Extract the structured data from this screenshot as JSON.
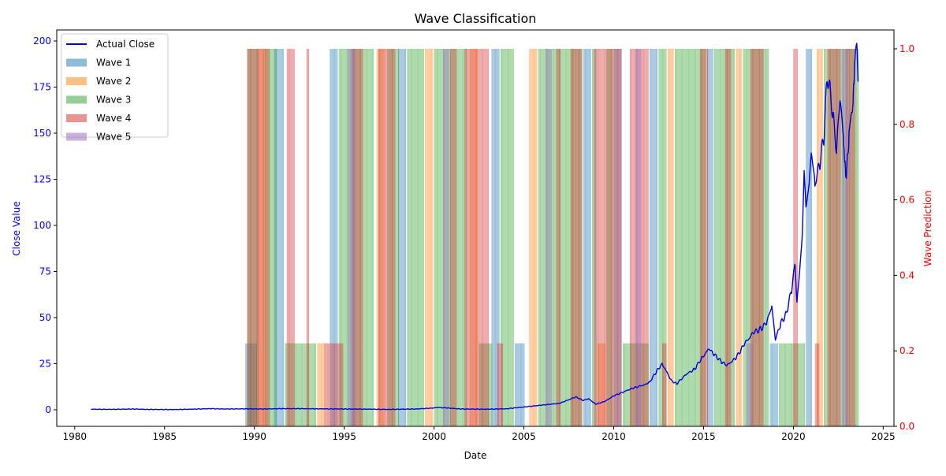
{
  "chart_data": {
    "type": "line",
    "title": "Wave Classification",
    "xlabel": "Date",
    "ylabel_left": "Close Value",
    "ylabel_right": "Wave Prediction",
    "x_range": [
      1979.0,
      2025.6
    ],
    "y_left_range": [
      -9,
      206
    ],
    "y_right_range": [
      0,
      1.05
    ],
    "x_ticks": [
      "1980",
      "1985",
      "1990",
      "1995",
      "2000",
      "2005",
      "2010",
      "2015",
      "2020",
      "2025"
    ],
    "y_left_ticks": [
      "0",
      "25",
      "50",
      "75",
      "100",
      "125",
      "150",
      "175",
      "200"
    ],
    "y_right_ticks": [
      "0.0",
      "0.2",
      "0.4",
      "0.6",
      "0.8",
      "1.0"
    ],
    "legend_position": "top-left",
    "grid": false,
    "colors": {
      "actual_close": "#0000dd",
      "left_axis": "#0000ff",
      "right_axis": "#ff0000",
      "wave1": "#1f77b4",
      "wave2": "#ff7f0e",
      "wave3": "#2ca02c",
      "wave4": "#d62728",
      "wave5": "#9467bd"
    },
    "series": [
      {
        "name": "Actual Close",
        "points": [
          [
            1980.9,
            0.3
          ],
          [
            1982.0,
            0.2
          ],
          [
            1983.3,
            0.4
          ],
          [
            1984.0,
            0.2
          ],
          [
            1985.5,
            0.1
          ],
          [
            1986.5,
            0.3
          ],
          [
            1987.6,
            0.6
          ],
          [
            1988.3,
            0.4
          ],
          [
            1989.5,
            0.5
          ],
          [
            1990.5,
            0.4
          ],
          [
            1991.5,
            0.6
          ],
          [
            1992.5,
            0.6
          ],
          [
            1993.5,
            0.5
          ],
          [
            1995.0,
            0.4
          ],
          [
            1996.5,
            0.3
          ],
          [
            1997.5,
            0.2
          ],
          [
            1999.0,
            0.4
          ],
          [
            1999.9,
            0.9
          ],
          [
            2000.2,
            1.2
          ],
          [
            2000.7,
            1.0
          ],
          [
            2001.5,
            0.4
          ],
          [
            2003.0,
            0.3
          ],
          [
            2004.0,
            0.5
          ],
          [
            2005.0,
            1.5
          ],
          [
            2006.0,
            2.5
          ],
          [
            2007.0,
            3.5
          ],
          [
            2007.9,
            7.0
          ],
          [
            2008.3,
            5.0
          ],
          [
            2008.6,
            6.0
          ],
          [
            2009.0,
            3.0
          ],
          [
            2009.5,
            4.5
          ],
          [
            2010.0,
            7.5
          ],
          [
            2011.0,
            11.5
          ],
          [
            2011.7,
            13.5
          ],
          [
            2012.0,
            15.0
          ],
          [
            2012.4,
            21.0
          ],
          [
            2012.7,
            25.0
          ],
          [
            2013.2,
            16.0
          ],
          [
            2013.5,
            14.0
          ],
          [
            2014.0,
            19.0
          ],
          [
            2014.5,
            22.0
          ],
          [
            2014.9,
            28.0
          ],
          [
            2015.3,
            33.0
          ],
          [
            2015.6,
            30.0
          ],
          [
            2016.0,
            26.0
          ],
          [
            2016.3,
            24.0
          ],
          [
            2016.8,
            28.0
          ],
          [
            2017.3,
            36.0
          ],
          [
            2017.8,
            42.0
          ],
          [
            2018.2,
            44.0
          ],
          [
            2018.5,
            47.0
          ],
          [
            2018.8,
            56.0
          ],
          [
            2019.0,
            38.0
          ],
          [
            2019.3,
            47.0
          ],
          [
            2019.6,
            52.0
          ],
          [
            2019.9,
            65.0
          ],
          [
            2020.1,
            80.0
          ],
          [
            2020.2,
            57.0
          ],
          [
            2020.5,
            95.0
          ],
          [
            2020.6,
            130.0
          ],
          [
            2020.7,
            110.0
          ],
          [
            2020.9,
            125.0
          ],
          [
            2021.0,
            140.0
          ],
          [
            2021.2,
            122.0
          ],
          [
            2021.5,
            135.0
          ],
          [
            2021.7,
            148.0
          ],
          [
            2021.9,
            182.0
          ],
          [
            2022.2,
            160.0
          ],
          [
            2022.4,
            140.0
          ],
          [
            2022.6,
            170.0
          ],
          [
            2022.8,
            145.0
          ],
          [
            2022.95,
            126.0
          ],
          [
            2023.1,
            150.0
          ],
          [
            2023.3,
            165.0
          ],
          [
            2023.45,
            193.0
          ],
          [
            2023.55,
            196.0
          ],
          [
            2023.6,
            178.0
          ]
        ]
      },
      {
        "name": "Wave 1",
        "wave_segments": [
          [
            1989.5,
            1990.1
          ],
          [
            1991.1,
            1991.6
          ],
          [
            1994.2,
            1994.6
          ],
          [
            1998.0,
            1998.4
          ],
          [
            2003.2,
            2003.6
          ],
          [
            2004.5,
            2005.0
          ],
          [
            2008.3,
            2008.7
          ],
          [
            2010.0,
            2010.4
          ],
          [
            2012.0,
            2012.4
          ],
          [
            2015.2,
            2015.5
          ],
          [
            2018.7,
            2019.1
          ],
          [
            2020.7,
            2021.0
          ]
        ]
      },
      {
        "name": "Wave 2",
        "wave_segments": [
          [
            1990.2,
            1990.6
          ],
          [
            1993.5,
            1993.9
          ],
          [
            1996.8,
            1997.2
          ],
          [
            1999.5,
            1999.9
          ],
          [
            2002.0,
            2002.4
          ],
          [
            2005.3,
            2005.7
          ],
          [
            2009.1,
            2009.5
          ],
          [
            2013.0,
            2013.3
          ],
          [
            2016.8,
            2017.1
          ],
          [
            2021.3,
            2021.6
          ]
        ]
      },
      {
        "name": "Wave 3",
        "wave_segments": [
          [
            1989.6,
            1990.2
          ],
          [
            1990.6,
            1991.2
          ],
          [
            1991.7,
            1993.4
          ],
          [
            1994.7,
            1996.6
          ],
          [
            1997.4,
            1998.0
          ],
          [
            1998.5,
            1999.4
          ],
          [
            2000.0,
            2001.8
          ],
          [
            2002.5,
            2003.2
          ],
          [
            2003.7,
            2004.4
          ],
          [
            2005.8,
            2008.2
          ],
          [
            2008.8,
            2009.0
          ],
          [
            2009.6,
            2009.9
          ],
          [
            2010.5,
            2011.9
          ],
          [
            2012.5,
            2012.9
          ],
          [
            2013.4,
            2015.1
          ],
          [
            2015.6,
            2016.7
          ],
          [
            2017.2,
            2018.6
          ],
          [
            2019.2,
            2020.6
          ],
          [
            2021.7,
            2023.6
          ]
        ]
      },
      {
        "name": "Wave 4",
        "wave_segments": [
          [
            1989.6,
            1990.8
          ],
          [
            1991.8,
            1992.2
          ],
          [
            1992.9,
            1993.0
          ],
          [
            1993.9,
            1994.9
          ],
          [
            1995.4,
            1996.0
          ],
          [
            1996.9,
            1997.8
          ],
          [
            2000.9,
            2001.2
          ],
          [
            2001.7,
            2003.0
          ],
          [
            2003.5,
            2003.8
          ],
          [
            2006.8,
            2007.0
          ],
          [
            2007.6,
            2008.2
          ],
          [
            2008.9,
            2010.4
          ],
          [
            2010.9,
            2011.9
          ],
          [
            2012.7,
            2012.9
          ],
          [
            2014.8,
            2015.2
          ],
          [
            2016.2,
            2016.5
          ],
          [
            2017.6,
            2018.3
          ],
          [
            2020.0,
            2020.2
          ],
          [
            2021.2,
            2021.4
          ],
          [
            2021.9,
            2022.6
          ],
          [
            2022.9,
            2023.4
          ]
        ]
      },
      {
        "name": "Wave 5",
        "wave_segments": [
          [
            1995.2,
            1995.6
          ],
          [
            2000.5,
            2000.8
          ],
          [
            2006.2,
            2006.5
          ],
          [
            2011.2,
            2011.5
          ],
          [
            2017.4,
            2017.7
          ],
          [
            2022.7,
            2023.0
          ]
        ]
      }
    ],
    "wave_values_full": [
      1,
      1,
      1,
      1,
      1
    ],
    "wave_values_short": [
      0.22,
      0.22,
      0.22,
      0.22,
      0.22
    ]
  }
}
